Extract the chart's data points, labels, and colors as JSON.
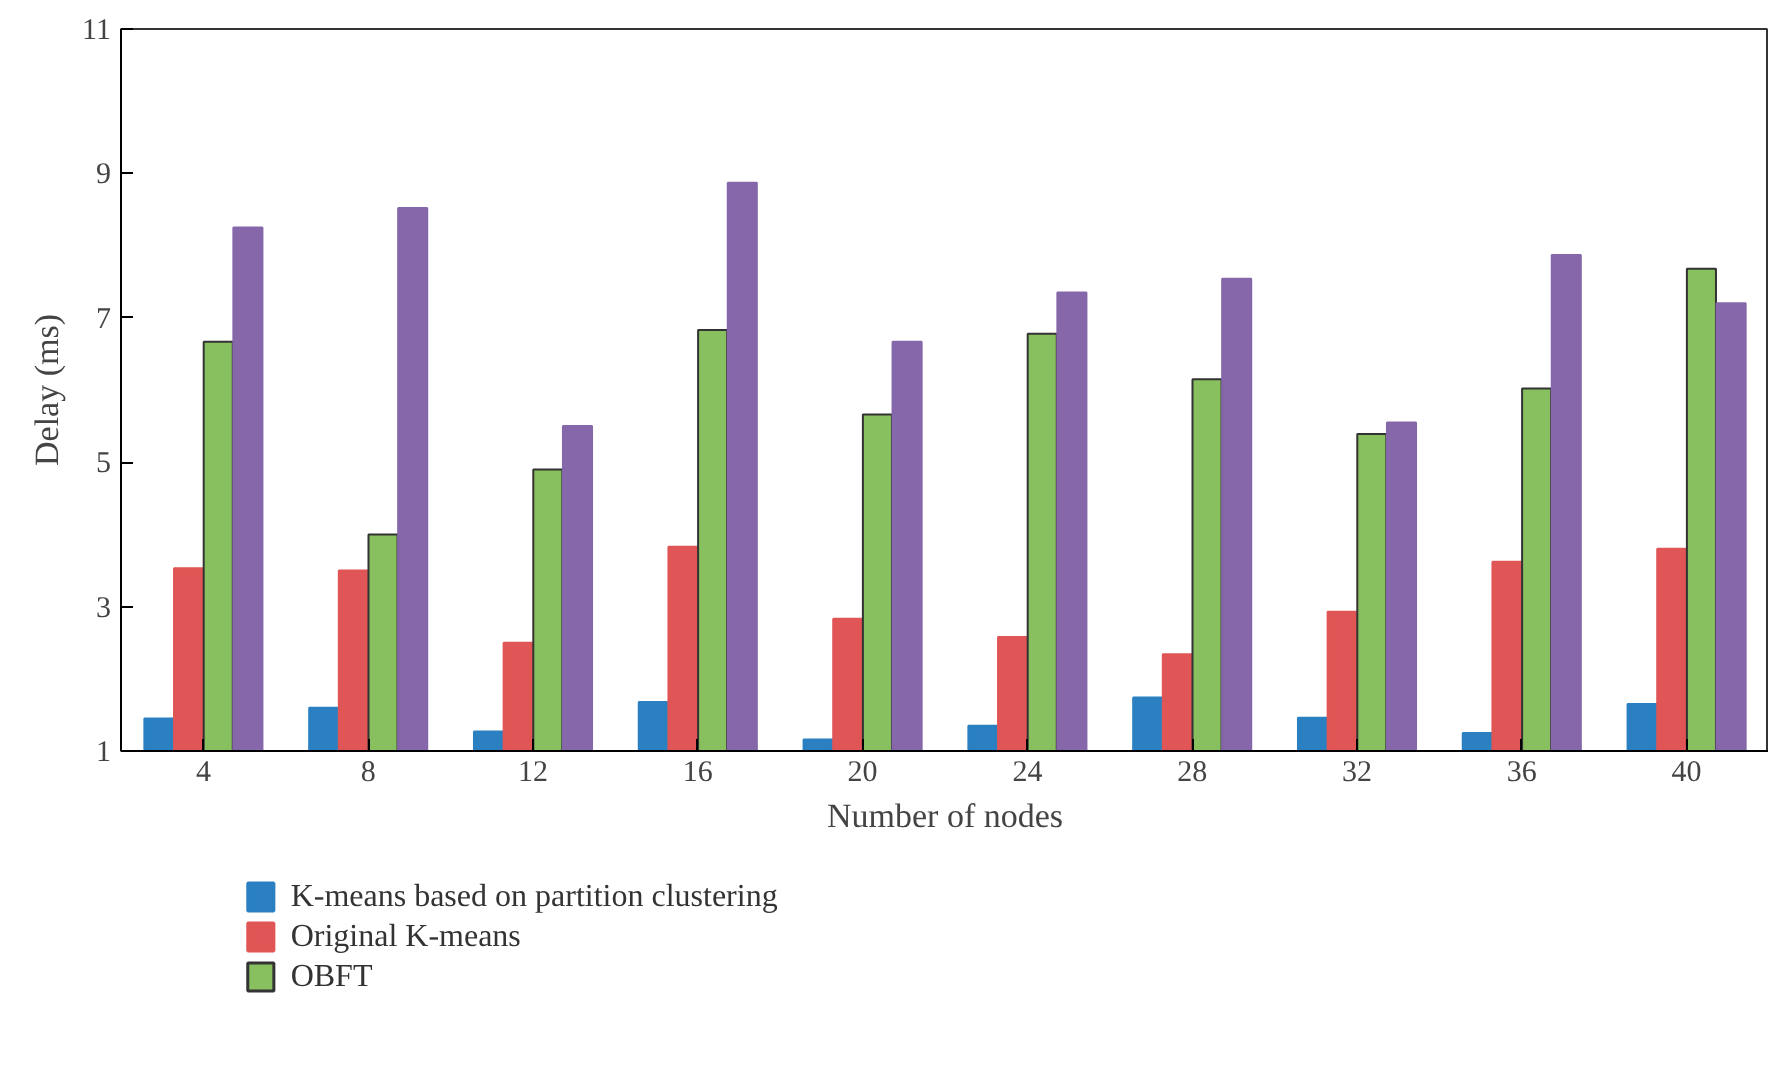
{
  "chart_data": {
    "type": "bar",
    "xlabel": "Number of nodes",
    "ylabel": "Delay (ms)",
    "categories": [
      "4",
      "8",
      "12",
      "16",
      "20",
      "24",
      "28",
      "32",
      "36",
      "40"
    ],
    "ylim": [
      1,
      11
    ],
    "yticks": [
      1,
      3,
      5,
      7,
      9,
      11
    ],
    "grid": false,
    "legend": "bottom left",
    "series": [
      {
        "name": "K-means based on partition clustering",
        "color": "#2a80c0",
        "values": [
          1.45,
          1.6,
          1.27,
          1.68,
          1.16,
          1.35,
          1.74,
          1.46,
          1.25,
          1.65
        ]
      },
      {
        "name": "Original K-means",
        "color": "#e05555",
        "values": [
          3.53,
          3.5,
          2.5,
          3.83,
          2.83,
          2.58,
          2.34,
          2.93,
          3.62,
          3.8
        ]
      },
      {
        "name": "OBFT",
        "color": "#88c060",
        "values": [
          6.67,
          4.0,
          4.9,
          6.83,
          5.66,
          6.78,
          6.15,
          5.39,
          6.02,
          7.68
        ]
      },
      {
        "color": "#8567aa",
        "values": [
          8.25,
          8.52,
          5.5,
          8.87,
          6.67,
          7.35,
          7.54,
          5.55,
          7.87,
          7.2
        ]
      }
    ]
  }
}
